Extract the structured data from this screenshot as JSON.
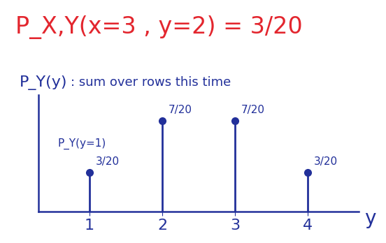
{
  "chart_data": {
    "type": "stem",
    "title": "P_X,Y(x=3 , y=2) = 3/20",
    "subtitle": ": sum over rows this time",
    "y_label": "P_Y(y)",
    "x_label": "y",
    "annotations": [
      "P_Y(y=1)"
    ],
    "x": [
      1,
      2,
      3,
      4
    ],
    "values": [
      0.15,
      0.35,
      0.35,
      0.15
    ],
    "value_labels": [
      "3/20",
      "7/20",
      "7/20",
      "3/20"
    ],
    "data_labels": true,
    "xlim": [
      0.3,
      4.7
    ],
    "xticks": [
      1,
      2,
      3,
      4
    ],
    "ylim": [
      0,
      0.45
    ],
    "tick_labels": "x",
    "color": "#22309a",
    "title_color": "#e3262e",
    "marker": "o"
  }
}
